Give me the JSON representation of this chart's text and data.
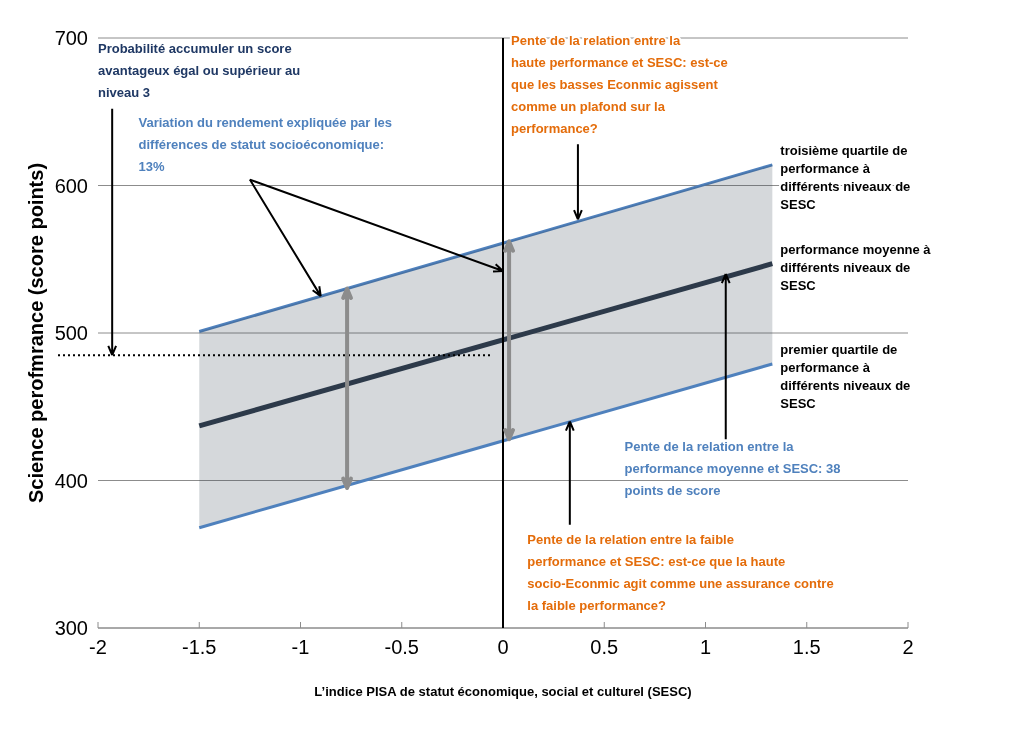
{
  "chart_data": {
    "type": "line",
    "ylabel": "Science perofmrance (score points)",
    "xlabel": "L’indice PISA de statut économique, social et culturel (SESC)",
    "x": [
      -1.5,
      1.33
    ],
    "xlim": [
      -2,
      2
    ],
    "xticks": [
      -2,
      -1.5,
      -1,
      -0.5,
      0,
      0.5,
      1,
      1.5,
      2
    ],
    "ylim": [
      300,
      700
    ],
    "yticks": [
      300,
      400,
      500,
      600,
      700
    ],
    "grid": "y",
    "legend": false,
    "marker": "none",
    "line_style": "solid",
    "series": [
      {
        "name": "troisième quartile de performance à différents niveaux de SESC",
        "color": "#4f81bd",
        "values": [
          501,
          614
        ]
      },
      {
        "name": "performance moyenne à différents niveaux de SESC",
        "color": "#2d3a4a",
        "values": [
          437,
          547
        ],
        "lower": [
          368,
          479
        ],
        "upper": [
          501,
          614
        ]
      },
      {
        "name": "premier quartile de performance à différents niveaux de SESC",
        "color": "#4f81bd",
        "values": [
          368,
          479
        ]
      }
    ],
    "ref_lines": [
      {
        "axis": "x",
        "value": 0,
        "color": "#000000",
        "line_style": "solid"
      },
      {
        "axis": "y",
        "value": 485,
        "color": "#000000",
        "line_style": "dotted"
      }
    ],
    "annotations": [
      {
        "text": "Probabilité accumuler un score avantageux égal ou supérieur au niveau 3",
        "x": -1.93,
        "y": 485
      },
      {
        "text": "Pente de la relation entre la haute performance et SESC: est-ce que les basses Econmic agissent comme un plafond sur la performance?",
        "x": 0.37,
        "y": 577
      },
      {
        "text": "Variation du rendement expliquée par les différences de statut socioéconomique: 13%",
        "x": -0.9,
        "y": 525
      },
      {
        "text": "Pente de la relation entre la performance moyenne et SESC: 38 points de score",
        "x": 1.1,
        "y": 540
      },
      {
        "text": "Pente de la relation entre la faible performance et SESC: est-ce que la haute socio-Econmic agit comme une assurance contre la faible performance?",
        "x": 0.33,
        "y": 440
      }
    ]
  }
}
